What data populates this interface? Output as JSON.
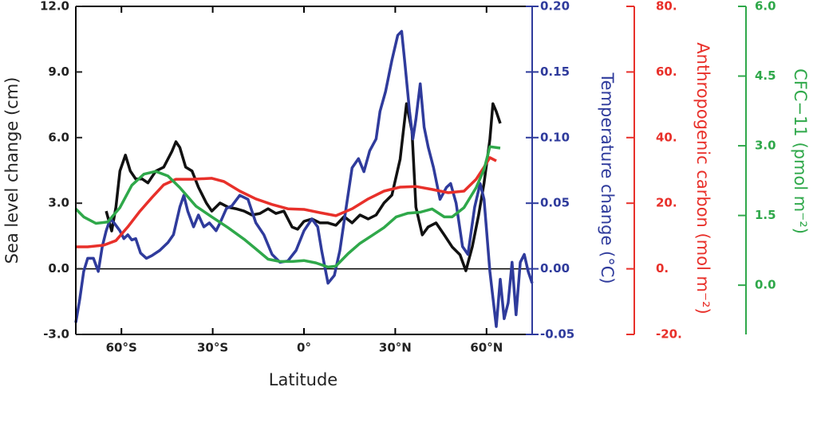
{
  "chart_data": {
    "type": "line",
    "xlabel": "Latitude",
    "ylabel": "Sea level change (cm)",
    "y2label": "Temperature change (°C)",
    "y3label": "Anthropogenic carbon (mol m⁻²)",
    "y4label": "CFC−11 (pmol m⁻²)",
    "xlim": [
      -75,
      75
    ],
    "xticks": [
      {
        "value": -60,
        "label": "60°S"
      },
      {
        "value": -30,
        "label": "30°S"
      },
      {
        "value": 0,
        "label": "0°"
      },
      {
        "value": 30,
        "label": "30°N"
      },
      {
        "value": 60,
        "label": "60°N"
      }
    ],
    "ylim": [
      -3,
      12
    ],
    "yticks": [
      {
        "value": 12,
        "label": "12.0"
      },
      {
        "value": 9,
        "label": "9.0"
      },
      {
        "value": 6,
        "label": "6.0"
      },
      {
        "value": 3,
        "label": "3.0"
      },
      {
        "value": 0,
        "label": "0.0"
      },
      {
        "value": -3,
        "label": "-3.0"
      }
    ],
    "y2lim": [
      -0.05,
      0.2
    ],
    "y2ticks": [
      {
        "value": 0.2,
        "label": "0.20"
      },
      0.15,
      {
        "value": 0.1,
        "label": "0.10"
      },
      0.05,
      {
        "value": 0,
        "label": "0.00"
      },
      -0.05
    ],
    "y3lim": [
      -20,
      80
    ],
    "y3ticks": [
      {
        "value": 80,
        "label": "80."
      },
      {
        "value": 60,
        "label": "60."
      },
      {
        "value": 40,
        "label": "40."
      },
      {
        "value": 20,
        "label": "20."
      },
      {
        "value": 0,
        "label": "0."
      },
      {
        "value": -20,
        "label": "-20."
      }
    ],
    "y4lim": [
      -1.06,
      6
    ],
    "y4ticks": [
      {
        "value": 6,
        "label": "6.0"
      },
      4.5,
      {
        "value": 3,
        "label": "3.0"
      },
      1.5,
      {
        "value": 0,
        "label": "0.0"
      }
    ],
    "series": [
      {
        "axis": "y",
        "color": "#111111",
        "x": [
          -65.0,
          -63.2,
          -61.8,
          -60.5,
          -58.7,
          -57.1,
          -55.3,
          -53.2,
          -51.3,
          -48.7,
          -46.1,
          -43.4,
          -42.1,
          -40.8,
          -38.9,
          -36.8,
          -34.7,
          -32.1,
          -30.3,
          -27.6,
          -25.0,
          -22.4,
          -19.7,
          -17.1,
          -14.5,
          -11.8,
          -9.2,
          -6.6,
          -3.9,
          -2.1,
          0,
          2.6,
          5.3,
          7.9,
          10.5,
          13.2,
          15.8,
          18.4,
          21.1,
          23.7,
          26.3,
          28.9,
          31.6,
          33.7,
          35.5,
          36.8,
          38.9,
          40.8,
          43.4,
          46.1,
          48.7,
          51.3,
          53.2,
          55.3,
          57.4,
          59.2,
          61.1,
          62.1,
          63.2,
          64.5
        ],
        "values": [
          2.64,
          1.73,
          2.82,
          4.47,
          5.2,
          4.47,
          4.11,
          4.11,
          3.93,
          4.47,
          4.65,
          5.37,
          5.81,
          5.55,
          4.65,
          4.47,
          3.73,
          3.01,
          2.64,
          3.01,
          2.82,
          2.75,
          2.64,
          2.46,
          2.53,
          2.75,
          2.53,
          2.64,
          1.91,
          1.81,
          2.17,
          2.28,
          2.1,
          2.1,
          1.99,
          2.39,
          2.1,
          2.46,
          2.28,
          2.46,
          3.01,
          3.37,
          5.01,
          7.55,
          6.28,
          2.82,
          1.55,
          1.91,
          2.1,
          1.55,
          1.0,
          0.64,
          -0.09,
          1.0,
          2.46,
          3.92,
          5.92,
          7.55,
          7.19,
          6.65
        ]
      },
      {
        "axis": "y2",
        "color": "#2f3b9c",
        "x": [
          -75.0,
          -73.7,
          -72.4,
          -71.1,
          -69.2,
          -67.6,
          -66.3,
          -65.0,
          -63.7,
          -62.4,
          -60.5,
          -59.2,
          -57.9,
          -56.6,
          -55.3,
          -53.7,
          -51.8,
          -50.0,
          -47.4,
          -44.7,
          -42.9,
          -40.8,
          -39.5,
          -38.2,
          -36.3,
          -34.7,
          -32.9,
          -31.1,
          -28.9,
          -27.6,
          -25.5,
          -23.7,
          -21.1,
          -18.4,
          -15.8,
          -13.2,
          -10.5,
          -7.9,
          -5.3,
          -2.6,
          0,
          2.6,
          4.5,
          5.8,
          7.9,
          10.0,
          11.8,
          13.7,
          15.8,
          17.9,
          19.7,
          21.6,
          23.7,
          25.0,
          26.8,
          28.9,
          30.8,
          32.1,
          33.2,
          34.7,
          35.8,
          36.8,
          38.2,
          39.5,
          40.8,
          42.6,
          44.7,
          46.8,
          48.2,
          50.0,
          52.1,
          53.9,
          56.1,
          57.9,
          59.2,
          61.1,
          63.2,
          64.5,
          65.8,
          67.1,
          68.4,
          69.7,
          71.1,
          72.4,
          73.7,
          75.0
        ],
        "values": [
          -0.041,
          -0.023,
          -0.002,
          0.008,
          0.008,
          -0.002,
          0.017,
          0.029,
          0.038,
          0.035,
          0.029,
          0.023,
          0.026,
          0.022,
          0.023,
          0.012,
          0.008,
          0.01,
          0.014,
          0.02,
          0.026,
          0.047,
          0.056,
          0.044,
          0.032,
          0.041,
          0.032,
          0.035,
          0.029,
          0.035,
          0.046,
          0.048,
          0.056,
          0.053,
          0.035,
          0.026,
          0.011,
          0.005,
          0.006,
          0.014,
          0.029,
          0.038,
          0.032,
          0.014,
          -0.011,
          -0.005,
          0.014,
          0.044,
          0.077,
          0.084,
          0.074,
          0.09,
          0.099,
          0.12,
          0.135,
          0.159,
          0.178,
          0.181,
          0.156,
          0.12,
          0.099,
          0.114,
          0.141,
          0.108,
          0.093,
          0.077,
          0.053,
          0.062,
          0.065,
          0.05,
          0.017,
          0.011,
          0.047,
          0.065,
          0.053,
          -0.002,
          -0.044,
          -0.008,
          -0.038,
          -0.026,
          0.005,
          -0.035,
          0.005,
          0.011,
          -0.002,
          -0.011
        ]
      },
      {
        "axis": "y3",
        "color": "#e8302a",
        "x": [
          -75,
          -71.1,
          -65.8,
          -61.8,
          -57.9,
          -53.9,
          -50,
          -46.1,
          -42.1,
          -36.8,
          -30.3,
          -26.3,
          -21.1,
          -15.8,
          -10.5,
          -5.3,
          0,
          5.3,
          10.5,
          15.8,
          21.1,
          26.3,
          31.6,
          36.8,
          42.1,
          47.4,
          52.6,
          56.6,
          59.2,
          61.1,
          63.2
        ],
        "values": [
          6.7,
          6.7,
          7.2,
          8.6,
          12.8,
          17.6,
          21.7,
          25.6,
          27.3,
          27.3,
          27.6,
          26.6,
          23.7,
          21.3,
          19.6,
          18.3,
          18.1,
          17.1,
          16.2,
          18.3,
          21.3,
          23.7,
          24.9,
          25.1,
          24.2,
          23.2,
          23.7,
          27.3,
          31.0,
          33.9,
          32.9
        ]
      },
      {
        "axis": "y4",
        "color": "#2fa84a",
        "x": [
          -75,
          -72.4,
          -68.4,
          -64.5,
          -60.5,
          -56.6,
          -52.6,
          -48.7,
          -44.7,
          -40.8,
          -35.5,
          -30.3,
          -25,
          -19.7,
          -15.8,
          -11.8,
          -7.9,
          -3.9,
          0,
          3.9,
          7.9,
          10.5,
          14.5,
          18.4,
          22.4,
          26.3,
          30.3,
          34.2,
          38.2,
          42.1,
          46.1,
          48.7,
          52.6,
          56.6,
          59.2,
          61.1,
          64.5
        ],
        "values": [
          1.64,
          1.47,
          1.33,
          1.36,
          1.67,
          2.15,
          2.39,
          2.45,
          2.35,
          2.1,
          1.7,
          1.47,
          1.24,
          0.99,
          0.78,
          0.56,
          0.51,
          0.51,
          0.53,
          0.48,
          0.39,
          0.41,
          0.68,
          0.9,
          1.07,
          1.24,
          1.47,
          1.55,
          1.57,
          1.64,
          1.47,
          1.47,
          1.67,
          2.1,
          2.49,
          2.98,
          2.95
        ]
      }
    ]
  }
}
